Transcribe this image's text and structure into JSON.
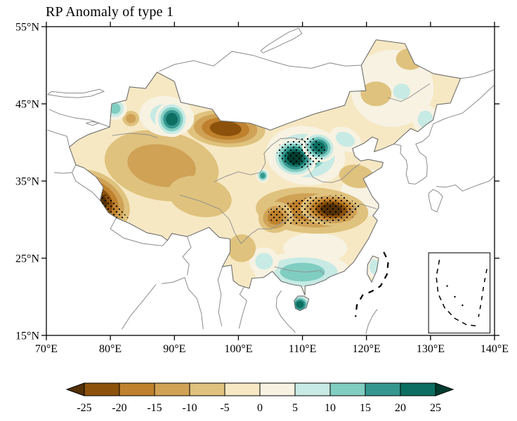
{
  "title": "RP Anomaly of type 1",
  "axes": {
    "x_tick_values": [
      70,
      80,
      90,
      100,
      110,
      120,
      130,
      140
    ],
    "x_tick_labels": [
      "70°E",
      "80°E",
      "90°E",
      "100°E",
      "110°E",
      "120°E",
      "130°E",
      "140°E"
    ],
    "y_tick_values": [
      15,
      25,
      35,
      45,
      55
    ],
    "y_tick_labels": [
      "15°N",
      "25°N",
      "35°N",
      "45°N",
      "55°N"
    ]
  },
  "colorbar": {
    "tick_labels": [
      "-25",
      "-20",
      "-15",
      "-10",
      "-5",
      "0",
      "5",
      "10",
      "15",
      "20",
      "25"
    ],
    "colors": [
      "#543005",
      "#8c510a",
      "#bf812d",
      "#cfa256",
      "#dfc27d",
      "#f6e8c3",
      "#f7f2e2",
      "#c7eae5",
      "#80cdc1",
      "#35978f",
      "#0d6e62",
      "#003c30"
    ]
  },
  "chart_data": {
    "type": "heatmap",
    "subtype": "filled-contour-anomaly-map",
    "title": "RP Anomaly of type 1",
    "region": {
      "lon_range": [
        70,
        140
      ],
      "lat_range": [
        15,
        55
      ]
    },
    "contour_levels": [
      -25,
      -20,
      -15,
      -10,
      -5,
      0,
      5,
      10,
      15,
      20,
      25
    ],
    "colorbar_orientation": "horizontal",
    "background_value_band": [
      -5,
      0
    ],
    "anomaly_centers": [
      {
        "name": "ne-china-pale-positive",
        "lon": 124.0,
        "lat": 47.0,
        "peak": 4,
        "rx_deg": 6.5,
        "ry_deg": 5.0,
        "rot_deg": 0
      },
      {
        "name": "east-coast-pale-positive",
        "lon": 120.5,
        "lat": 33.5,
        "peak": 4,
        "rx_deg": 4.5,
        "ry_deg": 3.0,
        "rot_deg": 0
      },
      {
        "name": "south-central-pale-positive",
        "lon": 112.0,
        "lat": 26.3,
        "peak": 4,
        "rx_deg": 5.0,
        "ry_deg": 2.0,
        "rot_deg": 0
      },
      {
        "name": "tarim-qinghai-negative",
        "lon": 88.0,
        "lat": 37.0,
        "peak": -14,
        "rx_deg": 9.0,
        "ry_deg": 4.5,
        "rot_deg": 10
      },
      {
        "name": "east-tibet-tan-negative",
        "lon": 94.0,
        "lat": 33.0,
        "peak": -9,
        "rx_deg": 5.0,
        "ry_deg": 2.6,
        "rot_deg": 12
      },
      {
        "name": "north-central-positive-broad",
        "lon": 110.5,
        "lat": 38.3,
        "peak": 12,
        "rx_deg": 6.2,
        "ry_deg": 3.8,
        "rot_deg": 8
      },
      {
        "name": "south-china-positive-band",
        "lon": 110.0,
        "lat": 23.2,
        "peak": 13,
        "rx_deg": 7.5,
        "ry_deg": 2.6,
        "rot_deg": 0
      },
      {
        "name": "yunnan-positive",
        "lon": 104.0,
        "lat": 24.6,
        "peak": 8,
        "rx_deg": 2.3,
        "ry_deg": 1.8,
        "rot_deg": 0
      },
      {
        "name": "ne-positive-spot-1",
        "lon": 125.5,
        "lat": 46.6,
        "peak": 8,
        "rx_deg": 2.2,
        "ry_deg": 1.7,
        "rot_deg": 0
      },
      {
        "name": "ne-positive-spot-2",
        "lon": 129.2,
        "lat": 43.0,
        "peak": 8,
        "rx_deg": 2.0,
        "ry_deg": 1.9,
        "rot_deg": 0
      },
      {
        "name": "ne-tan-spot-1",
        "lon": 121.5,
        "lat": 46.3,
        "peak": -8,
        "rx_deg": 2.4,
        "ry_deg": 1.6,
        "rot_deg": 0
      },
      {
        "name": "ne-tan-spot-2",
        "lon": 126.8,
        "lat": 50.8,
        "peak": -8,
        "rx_deg": 2.2,
        "ry_deg": 1.4,
        "rot_deg": 0
      },
      {
        "name": "shandong-tan-negative",
        "lon": 118.5,
        "lat": 35.6,
        "peak": -9,
        "rx_deg": 2.8,
        "ry_deg": 1.5,
        "rot_deg": 10
      },
      {
        "name": "nw-yunnan-tan-negative",
        "lon": 100.5,
        "lat": 26.3,
        "peak": -8,
        "rx_deg": 2.2,
        "ry_deg": 1.8,
        "rot_deg": 0
      },
      {
        "name": "inner-mongolia-negative-arc",
        "lon": 98.0,
        "lat": 41.8,
        "peak": -23,
        "rx_deg": 6.2,
        "ry_deg": 2.4,
        "rot_deg": 4
      },
      {
        "name": "west-tibet-negative-core",
        "lon": 77.5,
        "lat": 32.5,
        "peak": -27,
        "rx_deg": 6.0,
        "ry_deg": 3.5,
        "rot_deg": 33,
        "stippled": true
      },
      {
        "name": "yangtze-negative-broad",
        "lon": 111.5,
        "lat": 31.2,
        "peak": -16,
        "rx_deg": 8.8,
        "ry_deg": 3.0,
        "rot_deg": 3,
        "stippled": true
      },
      {
        "name": "sichuan-negative-lobe",
        "lon": 105.8,
        "lat": 30.3,
        "peak": -18,
        "rx_deg": 2.7,
        "ry_deg": 2.0,
        "rot_deg": -15
      },
      {
        "name": "yangtze-negative-dark-core",
        "lon": 114.5,
        "lat": 31.3,
        "peak": -27,
        "rx_deg": 4.8,
        "ry_deg": 2.1,
        "rot_deg": 4,
        "stippled": true
      },
      {
        "name": "east-xinjiang-positive-broad",
        "lon": 88.8,
        "lat": 43.4,
        "peak": 8,
        "rx_deg": 4.3,
        "ry_deg": 2.6,
        "rot_deg": 8
      },
      {
        "name": "east-xinjiang-positive-core",
        "lon": 89.6,
        "lat": 43.0,
        "peak": 24,
        "rx_deg": 2.6,
        "ry_deg": 2.3,
        "rot_deg": 0
      },
      {
        "name": "xinjiang-negative-dot",
        "lon": 83.2,
        "lat": 43.1,
        "peak": -12,
        "rx_deg": 1.3,
        "ry_deg": 1.0,
        "rot_deg": 0
      },
      {
        "name": "ili-positive",
        "lon": 80.7,
        "lat": 44.4,
        "peak": 13,
        "rx_deg": 1.9,
        "ry_deg": 1.5,
        "rot_deg": 0
      },
      {
        "name": "ordos-positive-core-west",
        "lon": 108.8,
        "lat": 38.0,
        "peak": 26,
        "rx_deg": 3.5,
        "ry_deg": 2.5,
        "rot_deg": 10,
        "stippled": true
      },
      {
        "name": "ordos-positive-core-east",
        "lon": 112.6,
        "lat": 39.4,
        "peak": 23,
        "rx_deg": 2.7,
        "ry_deg": 1.9,
        "rot_deg": 20,
        "stippled": true
      },
      {
        "name": "beijing-positive-extension",
        "lon": 116.7,
        "lat": 40.4,
        "peak": 9,
        "rx_deg": 2.6,
        "ry_deg": 1.5,
        "rot_deg": 25
      },
      {
        "name": "gansu-positive-dot",
        "lon": 103.8,
        "lat": 35.7,
        "peak": 18,
        "rx_deg": 1.0,
        "ry_deg": 0.9,
        "rot_deg": 0
      },
      {
        "name": "hainan-positive-core",
        "lon": 109.6,
        "lat": 19.0,
        "peak": 22,
        "rx_deg": 1.7,
        "ry_deg": 1.3,
        "rot_deg": 0
      },
      {
        "name": "taiwan-positive",
        "lon": 121.2,
        "lat": 23.9,
        "peak": 8,
        "rx_deg": 1.2,
        "ry_deg": 1.6,
        "rot_deg": 0
      }
    ],
    "stipple_regions": [
      {
        "name": "southwest-tibet-significant",
        "polygon": [
          [
            74.8,
            34.6
          ],
          [
            77.8,
            34.2
          ],
          [
            80.5,
            32.3
          ],
          [
            82.8,
            30.2
          ],
          [
            80.5,
            29.9
          ],
          [
            77.5,
            31.2
          ],
          [
            75.2,
            32.8
          ]
        ]
      },
      {
        "name": "north-central-significant",
        "polygon": [
          [
            106.2,
            39.6
          ],
          [
            108.5,
            40.4
          ],
          [
            111.5,
            40.6
          ],
          [
            113.8,
            39.4
          ],
          [
            113.0,
            37.4
          ],
          [
            110.0,
            36.6
          ],
          [
            107.2,
            37.4
          ],
          [
            106.0,
            38.6
          ]
        ]
      },
      {
        "name": "yangtze-belt-significant",
        "polygon": [
          [
            104.6,
            31.2
          ],
          [
            107.5,
            32.2
          ],
          [
            111.5,
            33.0
          ],
          [
            116.0,
            33.2
          ],
          [
            119.3,
            31.8
          ],
          [
            117.5,
            30.0
          ],
          [
            113.0,
            29.4
          ],
          [
            108.0,
            29.3
          ],
          [
            105.0,
            29.9
          ]
        ]
      }
    ]
  }
}
